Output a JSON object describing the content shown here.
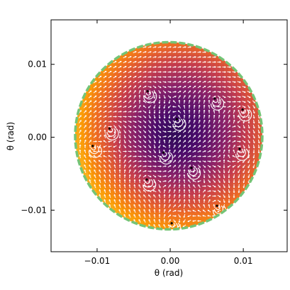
{
  "chart_data": {
    "type": "scatter",
    "title": "",
    "xlabel": "θ (rad)",
    "ylabel": "θ (rad)",
    "xlim": [
      -0.0163,
      0.016
    ],
    "ylim": [
      -0.0157,
      0.0161
    ],
    "xticks": [
      -0.01,
      0.0,
      0.01
    ],
    "xtick_labels": [
      "−0.01",
      "0.00",
      "0.01"
    ],
    "yticks": [
      -0.01,
      0.0,
      0.01
    ],
    "ytick_labels": [
      "−0.01",
      "0.00",
      "0.01"
    ],
    "grid": false,
    "aperture": {
      "center": [
        -0.0002,
        0.0002
      ],
      "radius": 0.0128,
      "edge_color": "#74c476"
    },
    "colormap": [
      "#1f0c48",
      "#4a0c6b",
      "#8a226a",
      "#c73e4c",
      "#ed6925",
      "#fb9a06",
      "#f7d13d"
    ],
    "arrow_color": "#ffffff",
    "vortices": [
      {
        "x": 0.0009,
        "y": 0.0025,
        "sign": 1
      },
      {
        "x": -0.0009,
        "y": -0.0021,
        "sign": 1
      },
      {
        "x": -0.0031,
        "y": 0.0063,
        "sign": -1
      },
      {
        "x": 0.0061,
        "y": 0.0053,
        "sign": -1
      },
      {
        "x": -0.0083,
        "y": 0.0012,
        "sign": -1
      },
      {
        "x": 0.0099,
        "y": 0.0038,
        "sign": -1
      },
      {
        "x": 0.0029,
        "y": -0.0042,
        "sign": -1
      },
      {
        "x": -0.0032,
        "y": -0.0058,
        "sign": -1
      },
      {
        "x": 0.0095,
        "y": -0.0016,
        "sign": -1
      },
      {
        "x": -0.0106,
        "y": -0.0012,
        "sign": -1
      },
      {
        "x": 0.0064,
        "y": -0.0094,
        "sign": -1
      },
      {
        "x": 0.0002,
        "y": -0.0118,
        "sign": -1
      }
    ]
  }
}
